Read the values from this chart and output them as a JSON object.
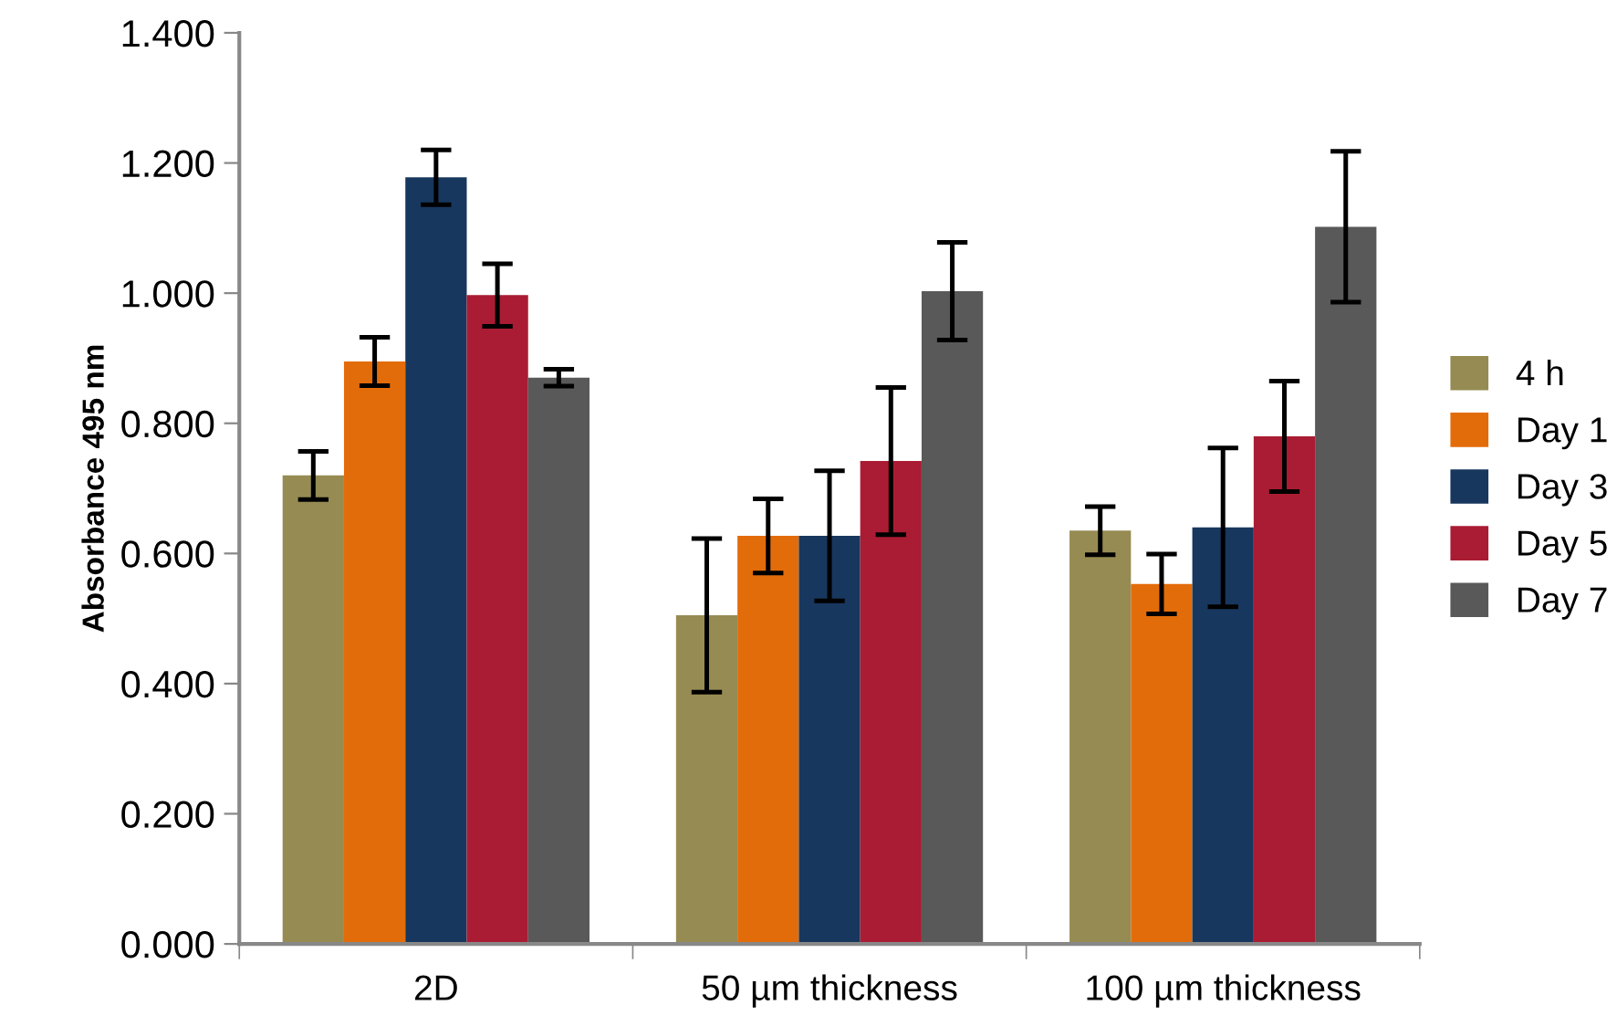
{
  "chart_data": {
    "type": "bar",
    "ylabel": "Absorbance 495 nm",
    "categories": [
      "2D",
      "50 µm thickness",
      "100 µm thickness"
    ],
    "series": [
      {
        "name": "4 h",
        "color": "#968b52",
        "values": [
          0.72,
          0.505,
          0.635
        ],
        "errors": [
          0.037,
          0.118,
          0.037
        ]
      },
      {
        "name": "Day 1",
        "color": "#e36c0a",
        "values": [
          0.895,
          0.627,
          0.553
        ],
        "errors": [
          0.037,
          0.057,
          0.046
        ]
      },
      {
        "name": "Day 3",
        "color": "#17375e",
        "values": [
          1.178,
          0.627,
          0.64
        ],
        "errors": [
          0.042,
          0.1,
          0.122
        ]
      },
      {
        "name": "Day 5",
        "color": "#aa1c33",
        "values": [
          0.997,
          0.742,
          0.78
        ],
        "errors": [
          0.048,
          0.113,
          0.085
        ]
      },
      {
        "name": "Day 7",
        "color": "#595959",
        "values": [
          0.87,
          1.003,
          1.102
        ],
        "errors": [
          0.013,
          0.075,
          0.116
        ]
      }
    ],
    "ylim": [
      0,
      1.4
    ],
    "yticks": [
      {
        "value": 0,
        "label": "0.000"
      },
      {
        "value": 0.2,
        "label": "0.200"
      },
      {
        "value": 0.4,
        "label": "0.400"
      },
      {
        "value": 0.6,
        "label": "0.600"
      },
      {
        "value": 0.8,
        "label": "0.800"
      },
      {
        "value": 1.0,
        "label": "1.000"
      },
      {
        "value": 1.2,
        "label": "1.200"
      },
      {
        "value": 1.4,
        "label": "1.400"
      }
    ],
    "grid": false,
    "legend": "right"
  }
}
